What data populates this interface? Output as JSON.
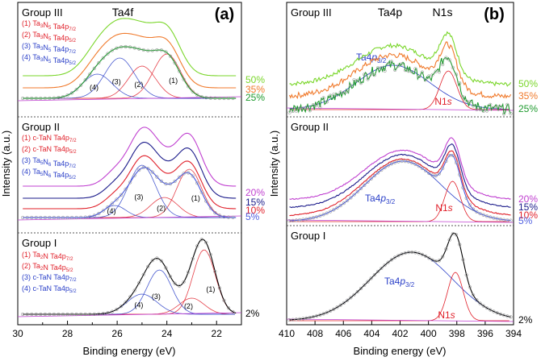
{
  "chart_data": [
    {
      "type": "line",
      "panel_label": "(a)",
      "title": "Ta4f",
      "xlabel": "Binding energy (eV)",
      "ylabel": "Intensity (a.u.)",
      "xlim": [
        30,
        21
      ],
      "xticks": [
        "30",
        "28",
        "26",
        "24",
        "22"
      ],
      "groups": [
        {
          "name": "Group III",
          "legend": [
            {
              "text": "(1) Ta3N5 Ta4p7/2",
              "color": "#e0202a"
            },
            {
              "text": "(2) Ta3N5 Ta4p5/2",
              "color": "#e0202a"
            },
            {
              "text": "(3) Ta3N5 Ta4p7/2",
              "color": "#2a3fc8"
            },
            {
              "text": "(4) Ta3N5 Ta4p5/2",
              "color": "#2a3fc8"
            }
          ],
          "curve_labels": [
            "(4)",
            "(3)",
            "(2)",
            "(1)"
          ],
          "series": [
            {
              "name": "50%",
              "color": "#7ad62a"
            },
            {
              "name": "35%",
              "color": "#f07a2c"
            },
            {
              "name": "25%",
              "color": "#1e9a2e"
            }
          ]
        },
        {
          "name": "Group II",
          "legend": [
            {
              "text": "(1) c-TaN Ta4p7/2",
              "color": "#e0202a"
            },
            {
              "text": "(2) c-TaN Ta4p5/2",
              "color": "#e0202a"
            },
            {
              "text": "(3) Ta5N6 Ta4p7/2",
              "color": "#2a3fc8"
            },
            {
              "text": "(4) Ta5N6 Ta4p5/2",
              "color": "#2a3fc8"
            }
          ],
          "curve_labels": [
            "(4)",
            "(3)",
            "(2)",
            "(1)"
          ],
          "series": [
            {
              "name": "20%",
              "color": "#c040d0"
            },
            {
              "name": "15%",
              "color": "#1a1a8a"
            },
            {
              "name": "10%",
              "color": "#e0202a"
            },
            {
              "name": "5%",
              "color": "#4f5fe0"
            }
          ]
        },
        {
          "name": "Group I",
          "legend": [
            {
              "text": "(1) Ta2N Ta4p7/2",
              "color": "#e0202a"
            },
            {
              "text": "(2) Ta2N Ta4p5/2",
              "color": "#e0202a"
            },
            {
              "text": "(3) c-TaN Ta4p7/2",
              "color": "#2a3fc8"
            },
            {
              "text": "(4) c-TaN Ta4p5/2",
              "color": "#2a3fc8"
            }
          ],
          "curve_labels": [
            "(4)",
            "(3)",
            "(2)",
            "(1)"
          ],
          "series": [
            {
              "name": "2%",
              "color": "#000000"
            }
          ]
        }
      ]
    },
    {
      "type": "line",
      "panel_label": "(b)",
      "title_left": "Ta4p",
      "title_right": "N1s",
      "xlabel": "Binding energy (eV)",
      "ylabel": "Intensity (a.u.)",
      "xlim": [
        410,
        394
      ],
      "xticks": [
        "410",
        "408",
        "406",
        "404",
        "402",
        "400",
        "398",
        "396",
        "394"
      ],
      "groups": [
        {
          "name": "Group III",
          "fit_labels": [
            "Ta4p3/2",
            "N1s"
          ],
          "series": [
            {
              "name": "50%",
              "color": "#7ad62a"
            },
            {
              "name": "35%",
              "color": "#f07a2c"
            },
            {
              "name": "25%",
              "color": "#1e9a2e"
            }
          ]
        },
        {
          "name": "Group II",
          "fit_labels": [
            "Ta4p3/2",
            "N1s"
          ],
          "series": [
            {
              "name": "20%",
              "color": "#c040d0"
            },
            {
              "name": "15%",
              "color": "#1a1a8a"
            },
            {
              "name": "10%",
              "color": "#e0202a"
            },
            {
              "name": "5%",
              "color": "#4f5fe0"
            }
          ]
        },
        {
          "name": "Group I",
          "fit_labels": [
            "Ta4p3/2",
            "N1s"
          ],
          "series": [
            {
              "name": "2%",
              "color": "#000000"
            }
          ]
        }
      ]
    }
  ]
}
